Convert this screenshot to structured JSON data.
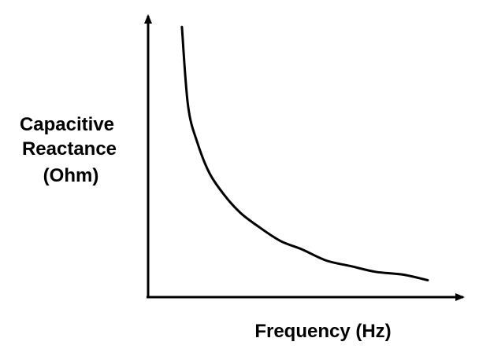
{
  "chart_data": {
    "type": "line",
    "title": "",
    "xlabel": "Frequency (Hz)",
    "ylabel_lines": [
      "Capacitive",
      "Reactance",
      "(Ohm)"
    ],
    "grid": false,
    "legend": "none",
    "ticks": "none",
    "x_range": [
      0,
      1
    ],
    "y_range": [
      0,
      1
    ],
    "relationship": "inverse",
    "series": [
      {
        "points": [
          [
            0.11,
            0.96
          ],
          [
            0.13,
            0.68
          ],
          [
            0.16,
            0.55
          ],
          [
            0.2,
            0.44
          ],
          [
            0.25,
            0.36
          ],
          [
            0.3,
            0.3
          ],
          [
            0.36,
            0.25
          ],
          [
            0.43,
            0.2
          ],
          [
            0.5,
            0.17
          ],
          [
            0.58,
            0.13
          ],
          [
            0.66,
            0.11
          ],
          [
            0.74,
            0.09
          ],
          [
            0.83,
            0.08
          ],
          [
            0.91,
            0.06
          ]
        ]
      }
    ]
  }
}
